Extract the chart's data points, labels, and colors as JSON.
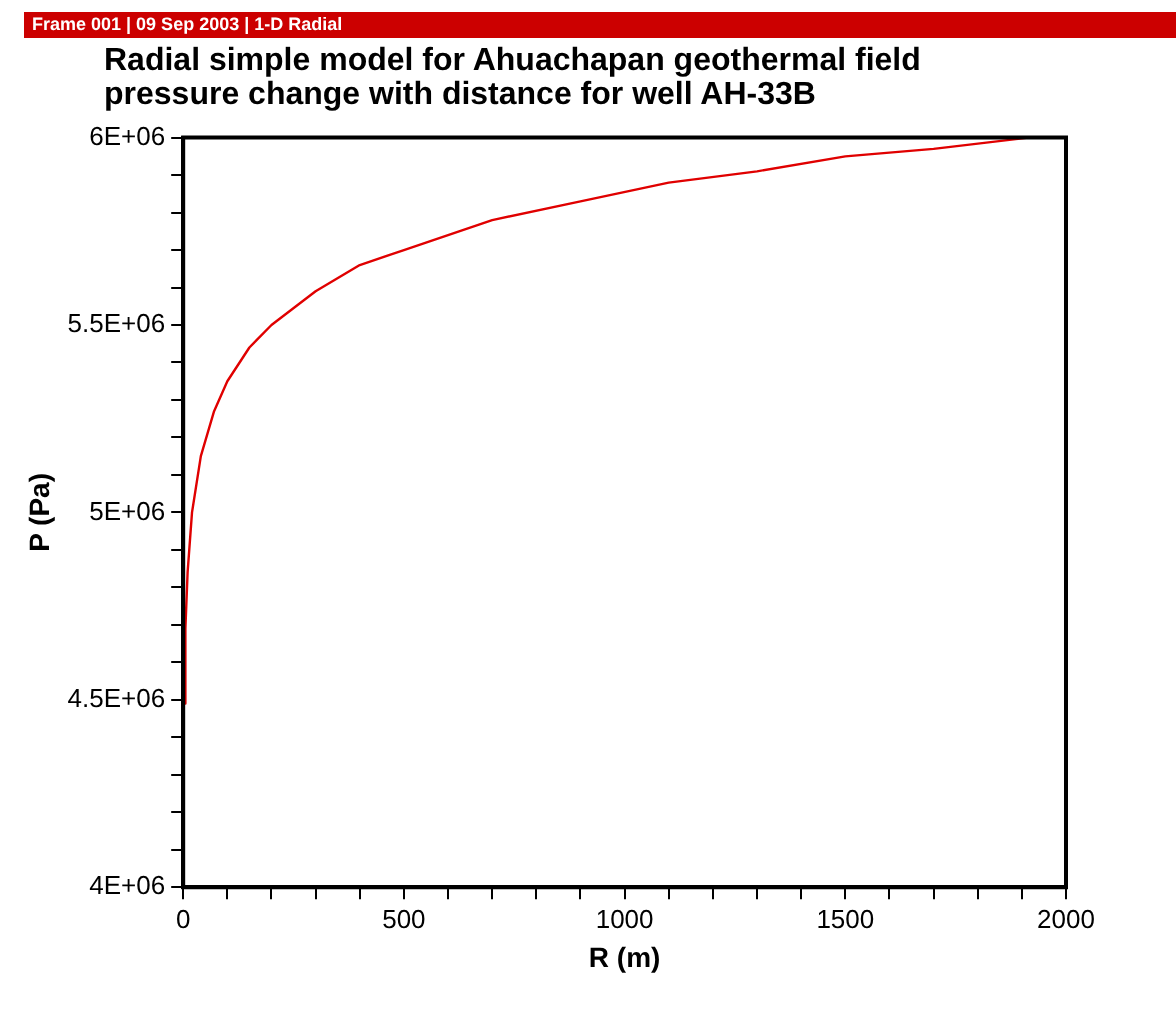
{
  "chart_data": {
    "type": "line",
    "title": "Radial simple model for Ahuachapan geothermal field pressure change with distance for well AH-33B",
    "xlabel": "R (m)",
    "ylabel": "P (Pa)",
    "annotations": [
      "Frame 001 | 09 Sep 2003 | 1-D Radial"
    ],
    "x": [
      2,
      5,
      10,
      20,
      40,
      70,
      100,
      150,
      200,
      300,
      400,
      500,
      700,
      900,
      1100,
      1300,
      1500,
      1700,
      1915
    ],
    "series": [
      {
        "color": "#e00000",
        "values": [
          4490000,
          4690000,
          4840000,
          5000000,
          5150000,
          5270000,
          5350000,
          5440000,
          5500000,
          5590000,
          5660000,
          5700000,
          5780000,
          5830000,
          5880000,
          5910000,
          5950000,
          5970000,
          6000000
        ]
      }
    ],
    "xlim": [
      0,
      2000
    ],
    "xticks": [
      0,
      {
        "value": 100,
        "label": null
      },
      {
        "value": 200,
        "label": null
      },
      {
        "value": 300,
        "label": null
      },
      {
        "value": 400,
        "label": null
      },
      500,
      {
        "value": 600,
        "label": null
      },
      {
        "value": 700,
        "label": null
      },
      {
        "value": 800,
        "label": null
      },
      {
        "value": 900,
        "label": null
      },
      1000,
      {
        "value": 1100,
        "label": null
      },
      {
        "value": 1200,
        "label": null
      },
      {
        "value": 1300,
        "label": null
      },
      {
        "value": 1400,
        "label": null
      },
      1500,
      {
        "value": 1600,
        "label": null
      },
      {
        "value": 1700,
        "label": null
      },
      {
        "value": 1800,
        "label": null
      },
      {
        "value": 1900,
        "label": null
      },
      2000
    ],
    "ylim": [
      4000000,
      6000000
    ],
    "yticks": [
      {
        "value": 4000000,
        "label": "4E+06"
      },
      {
        "value": 4100000,
        "label": null
      },
      {
        "value": 4200000,
        "label": null
      },
      {
        "value": 4300000,
        "label": null
      },
      {
        "value": 4400000,
        "label": null
      },
      {
        "value": 4500000,
        "label": "4.5E+06"
      },
      {
        "value": 4600000,
        "label": null
      },
      {
        "value": 4700000,
        "label": null
      },
      {
        "value": 4800000,
        "label": null
      },
      {
        "value": 4900000,
        "label": null
      },
      {
        "value": 5000000,
        "label": "5E+06"
      },
      {
        "value": 5100000,
        "label": null
      },
      {
        "value": 5200000,
        "label": null
      },
      {
        "value": 5300000,
        "label": null
      },
      {
        "value": 5400000,
        "label": null
      },
      {
        "value": 5500000,
        "label": "5.5E+06"
      },
      {
        "value": 5600000,
        "label": null
      },
      {
        "value": 5700000,
        "label": null
      },
      {
        "value": 5800000,
        "label": null
      },
      {
        "value": 5900000,
        "label": null
      },
      {
        "value": 6000000,
        "label": "6E+06"
      }
    ],
    "grid": false,
    "legend": false,
    "marker": "none",
    "line_style": "solid"
  }
}
